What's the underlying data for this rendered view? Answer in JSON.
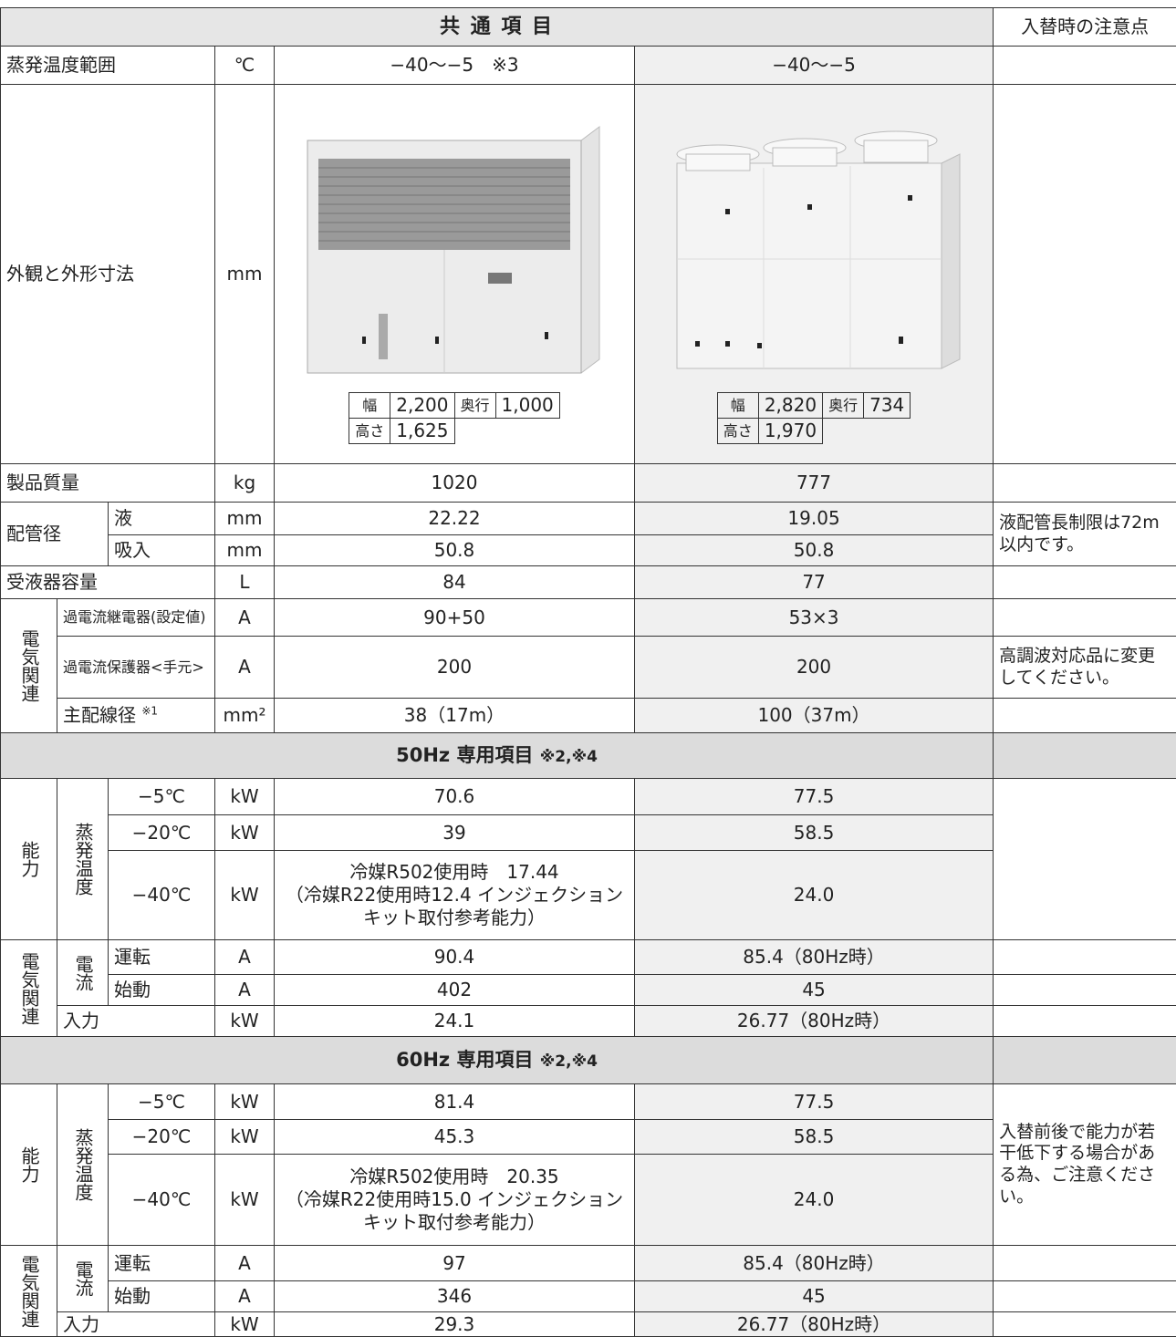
{
  "header": {
    "title": "共 通 項 目",
    "notes_title": "入替時の注意点"
  },
  "common": {
    "evap_range": {
      "label": "蒸発温度範囲",
      "unit": "℃",
      "left": "−40〜−5　※3",
      "right": "−40〜−5"
    },
    "appearance": {
      "label": "外観と外形寸法",
      "unit": "mm",
      "left": {
        "width_label": "幅",
        "width": "2,200",
        "depth_label": "奥行",
        "depth": "1,000",
        "height_label": "高さ",
        "height": "1,625"
      },
      "right": {
        "width_label": "幅",
        "width": "2,820",
        "depth_label": "奥行",
        "depth": "734",
        "height_label": "高さ",
        "height": "1,970"
      }
    },
    "mass": {
      "label": "製品質量",
      "unit": "kg",
      "left": "1020",
      "right": "777"
    },
    "pipe": {
      "label": "配管径",
      "note": "液配管長制限は72m以内です。",
      "liquid": {
        "label": "液",
        "unit": "mm",
        "left": "22.22",
        "right": "19.05"
      },
      "suction": {
        "label": "吸入",
        "unit": "mm",
        "left": "50.8",
        "right": "50.8"
      }
    },
    "receiver": {
      "label": "受液器容量",
      "unit": "L",
      "left": "84",
      "right": "77"
    },
    "electrical": {
      "label": "電気関連",
      "relay": {
        "label": "過電流継電器(設定値)",
        "unit": "A",
        "left": "90+50",
        "right": "53×3"
      },
      "breaker": {
        "label": "過電流保護器<手元>",
        "unit": "A",
        "left": "200",
        "right": "200",
        "note": "高調波対応品に変更してください。"
      },
      "wire": {
        "label": "主配線径",
        "mark": "※1",
        "unit": "mm²",
        "left": "38（17m）",
        "right": "100（37m）"
      }
    }
  },
  "hz50": {
    "title": "50Hz 専用項目",
    "marks": "※2,※4",
    "capacity_label": "能力",
    "evap_label": "蒸発温度",
    "capacity": [
      {
        "temp": "−5℃",
        "unit": "kW",
        "left": [
          "70.6"
        ],
        "right": "77.5"
      },
      {
        "temp": "−20℃",
        "unit": "kW",
        "left": [
          "39"
        ],
        "right": "58.5"
      },
      {
        "temp": "−40℃",
        "unit": "kW",
        "left": [
          "冷媒R502使用時　17.44",
          "（冷媒R22使用時12.4 インジェクションキット取付参考能力）"
        ],
        "right": "24.0"
      }
    ],
    "electrical_label": "電気関連",
    "current_label": "電流",
    "run": {
      "label": "運転",
      "unit": "A",
      "left": "90.4",
      "right": "85.4（80Hz時）"
    },
    "start": {
      "label": "始動",
      "unit": "A",
      "left": "402",
      "right": "45"
    },
    "input": {
      "label": "入力",
      "unit": "kW",
      "left": "24.1",
      "right": "26.77（80Hz時）"
    }
  },
  "hz60": {
    "title": "60Hz 専用項目",
    "marks": "※2,※4",
    "capacity_label": "能力",
    "evap_label": "蒸発温度",
    "note": "入替前後で能力が若干低下する場合がある為、ご注意ください。",
    "capacity": [
      {
        "temp": "−5℃",
        "unit": "kW",
        "left": [
          "81.4"
        ],
        "right": "77.5"
      },
      {
        "temp": "−20℃",
        "unit": "kW",
        "left": [
          "45.3"
        ],
        "right": "58.5"
      },
      {
        "temp": "−40℃",
        "unit": "kW",
        "left": [
          "冷媒R502使用時　20.35",
          "（冷媒R22使用時15.0 インジェクションキット取付参考能力）"
        ],
        "right": "24.0"
      }
    ],
    "electrical_label": "電気関連",
    "current_label": "電流",
    "run": {
      "label": "運転",
      "unit": "A",
      "left": "97",
      "right": "85.4（80Hz時）"
    },
    "start": {
      "label": "始動",
      "unit": "A",
      "left": "346",
      "right": "45"
    },
    "input": {
      "label": "入力",
      "unit": "kW",
      "left": "29.3",
      "right": "26.77（80Hz時）"
    }
  }
}
